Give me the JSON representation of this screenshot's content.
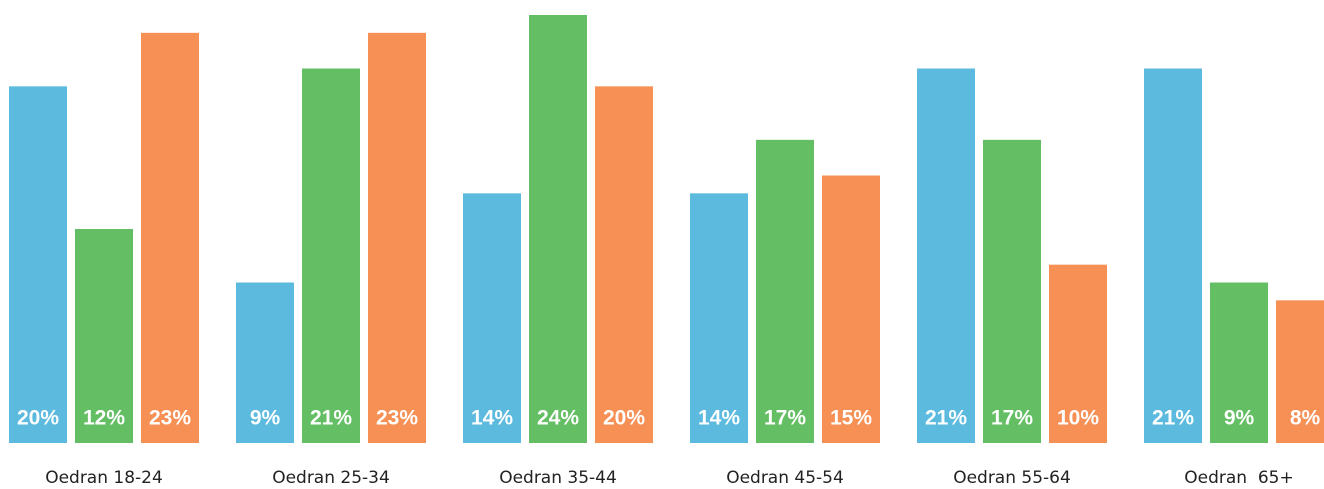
{
  "chart_data": {
    "type": "bar",
    "categories": [
      "Oedran 18-24",
      "Oedran 25-34",
      "Oedran 35-44",
      "Oedran 45-54",
      "Oedran 55-64",
      "Oedran  65+"
    ],
    "ylim": [
      0,
      24
    ],
    "series": [
      {
        "color": "#5bbadd",
        "values": [
          20,
          9,
          14,
          14,
          21,
          21
        ],
        "value_labels": [
          "20%",
          "9%",
          "14%",
          "14%",
          "21%",
          "21%"
        ]
      },
      {
        "color": "#63be64",
        "values": [
          12,
          21,
          24,
          17,
          17,
          9
        ],
        "value_labels": [
          "12%",
          "21%",
          "24%",
          "17%",
          "17%",
          "9%"
        ]
      },
      {
        "color": "#f69055",
        "values": [
          23,
          23,
          20,
          15,
          10,
          8
        ],
        "value_labels": [
          "23%",
          "23%",
          "20%",
          "15%",
          "10%",
          "8%"
        ]
      }
    ]
  }
}
